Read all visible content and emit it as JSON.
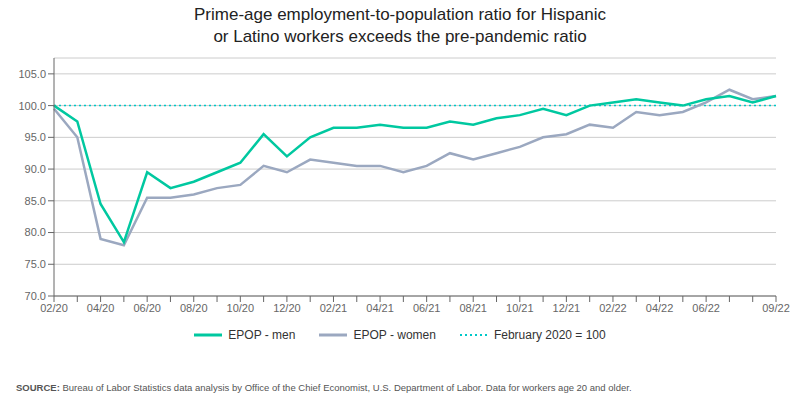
{
  "chart_data": {
    "type": "line",
    "title": "Prime-age employment-to-population ratio for Hispanic\nor Latino workers exceeds the pre-pandemic ratio",
    "categories": [
      "02/20",
      null,
      "04/20",
      null,
      "06/20",
      null,
      "08/20",
      null,
      "10/20",
      null,
      "12/20",
      null,
      "02/21",
      null,
      "04/21",
      null,
      "06/21",
      null,
      "08/21",
      null,
      "10/21",
      null,
      "12/21",
      null,
      "02/22",
      null,
      "04/22",
      null,
      "06/22",
      null,
      null,
      "09/22"
    ],
    "series": [
      {
        "name": "EPOP - men",
        "color": "#00c8a0",
        "line_style": "solid",
        "values": [
          100.0,
          97.5,
          84.5,
          78.5,
          89.5,
          87.0,
          88.0,
          89.5,
          91.0,
          95.5,
          92.0,
          95.0,
          96.5,
          96.5,
          97.0,
          96.5,
          96.5,
          97.5,
          97.0,
          98.0,
          98.5,
          99.5,
          98.5,
          100.0,
          100.5,
          101.0,
          100.5,
          100.0,
          101.0,
          101.5,
          100.5,
          101.5
        ]
      },
      {
        "name": "EPOP - women",
        "color": "#9ba8c0",
        "line_style": "solid",
        "values": [
          99.5,
          95.0,
          79.0,
          78.0,
          85.5,
          85.5,
          86.0,
          87.0,
          87.5,
          90.5,
          89.5,
          91.5,
          91.0,
          90.5,
          90.5,
          89.5,
          90.5,
          92.5,
          91.5,
          92.5,
          93.5,
          95.0,
          95.5,
          97.0,
          96.5,
          99.0,
          98.5,
          99.0,
          100.5,
          102.5,
          101.0,
          101.5
        ]
      }
    ],
    "reference_line": {
      "value": 100,
      "name": "February 2020 = 100",
      "color": "#00c8c8",
      "line_style": "dotted"
    },
    "ylim": [
      70,
      107.5
    ],
    "yticks": [
      {
        "value": 70,
        "label": "70.0"
      },
      {
        "value": 75,
        "label": "75.0"
      },
      {
        "value": 80,
        "label": "80.0"
      },
      {
        "value": 85,
        "label": "85.0"
      },
      {
        "value": 90,
        "label": "90.0"
      },
      {
        "value": 95,
        "label": "95.0"
      },
      {
        "value": 100,
        "label": "100.0"
      },
      {
        "value": 105,
        "label": "105.0"
      }
    ],
    "grid": true,
    "source_label": "SOURCE:",
    "source_text": "Bureau of Labor Statistics data analysis by Office of the Chief Economist, U.S. Department of Labor. Data for workers age 20 and older."
  }
}
